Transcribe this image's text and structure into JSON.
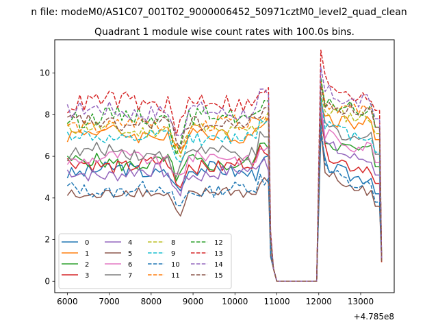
{
  "figure": {
    "suptitle": "n file: modeM0/AS1C07_001T02_9000006452_50971cztM0_level2_quad_clean",
    "title": "Quadrant 1 module wise count rates with 100.0s bins.",
    "offset_label": "+4.785e8"
  },
  "chart_data": {
    "type": "line",
    "title": "Quadrant 1 module wise count rates with 100.0s bins.",
    "xlabel": "",
    "ylabel": "",
    "x_offset": 478500000,
    "xlim": [
      5700,
      13800
    ],
    "ylim": [
      -0.55,
      11.6
    ],
    "xticks": [
      6000,
      7000,
      8000,
      9000,
      10000,
      11000,
      12000,
      13000
    ],
    "xtick_labels": [
      "6000",
      "7000",
      "8000",
      "9000",
      "10000",
      "11000",
      "12000",
      "13000"
    ],
    "yticks": [
      0,
      2,
      4,
      6,
      8,
      10
    ],
    "ytick_labels": [
      "0",
      "2",
      "4",
      "6",
      "8",
      "10"
    ],
    "grid": false,
    "legend": {
      "placement": "lower-left",
      "columns": 4
    },
    "segment_a": {
      "x_start": 6000,
      "x_step": 100,
      "x_end": 10800
    },
    "segment_b": {
      "x_start": 12050,
      "x_step": 100,
      "x_end": 13450
    },
    "series": [
      {
        "name": "0",
        "color": "#1f77b4",
        "dash": "solid",
        "base": 5.3,
        "amp": 0.35,
        "dip": 1.4,
        "b_peak": 7.0,
        "b_base": 5.0
      },
      {
        "name": "1",
        "color": "#ff7f0e",
        "dash": "solid",
        "base": 7.1,
        "amp": 0.35,
        "dip": 1.5,
        "b_peak": 8.4,
        "b_base": 7.6
      },
      {
        "name": "2",
        "color": "#2ca02c",
        "dash": "solid",
        "base": 5.7,
        "amp": 0.35,
        "dip": 1.3,
        "b_peak": 7.8,
        "b_base": 6.3
      },
      {
        "name": "3",
        "color": "#d62728",
        "dash": "solid",
        "base": 5.6,
        "amp": 0.35,
        "dip": 1.5,
        "b_peak": 7.9,
        "b_base": 5.5
      },
      {
        "name": "4",
        "color": "#9467bd",
        "dash": "solid",
        "base": 5.2,
        "amp": 0.35,
        "dip": 1.2,
        "b_peak": 8.2,
        "b_base": 5.9
      },
      {
        "name": "5",
        "color": "#8c564b",
        "dash": "solid",
        "base": 4.2,
        "amp": 0.3,
        "dip": 1.2,
        "b_peak": 7.4,
        "b_base": 4.4
      },
      {
        "name": "6",
        "color": "#e377c2",
        "dash": "solid",
        "base": 5.9,
        "amp": 0.3,
        "dip": 1.3,
        "b_peak": 8.6,
        "b_base": 6.5
      },
      {
        "name": "7",
        "color": "#7f7f7f",
        "dash": "solid",
        "base": 6.2,
        "amp": 0.35,
        "dip": 1.4,
        "b_peak": 8.8,
        "b_base": 6.9
      },
      {
        "name": "8",
        "color": "#bcbd22",
        "dash": "dashed",
        "base": 7.3,
        "amp": 0.35,
        "dip": 1.5,
        "b_peak": 9.0,
        "b_base": 7.9
      },
      {
        "name": "9",
        "color": "#17becf",
        "dash": "dashed",
        "base": 6.9,
        "amp": 0.3,
        "dip": 1.6,
        "b_peak": 8.9,
        "b_base": 7.0
      },
      {
        "name": "10",
        "color": "#1f77b4",
        "dash": "dashed",
        "base": 4.4,
        "amp": 0.3,
        "dip": 1.2,
        "b_peak": 7.5,
        "b_base": 4.6
      },
      {
        "name": "11",
        "color": "#ff7f0e",
        "dash": "dashed",
        "base": 7.5,
        "amp": 0.35,
        "dip": 1.6,
        "b_peak": 9.6,
        "b_base": 8.2
      },
      {
        "name": "12",
        "color": "#2ca02c",
        "dash": "dashed",
        "base": 7.9,
        "amp": 0.4,
        "dip": 1.8,
        "b_peak": 9.8,
        "b_base": 8.2
      },
      {
        "name": "13",
        "color": "#d62728",
        "dash": "dashed",
        "base": 8.6,
        "amp": 0.45,
        "dip": 1.9,
        "b_peak": 11.1,
        "b_base": 9.0
      },
      {
        "name": "14",
        "color": "#9467bd",
        "dash": "dashed",
        "base": 8.2,
        "amp": 0.4,
        "dip": 1.8,
        "b_peak": 10.3,
        "b_base": 8.6
      },
      {
        "name": "15",
        "color": "#8c564b",
        "dash": "dashed",
        "base": 7.6,
        "amp": 0.35,
        "dip": 1.7,
        "b_peak": 9.4,
        "b_base": 8.2
      }
    ]
  }
}
